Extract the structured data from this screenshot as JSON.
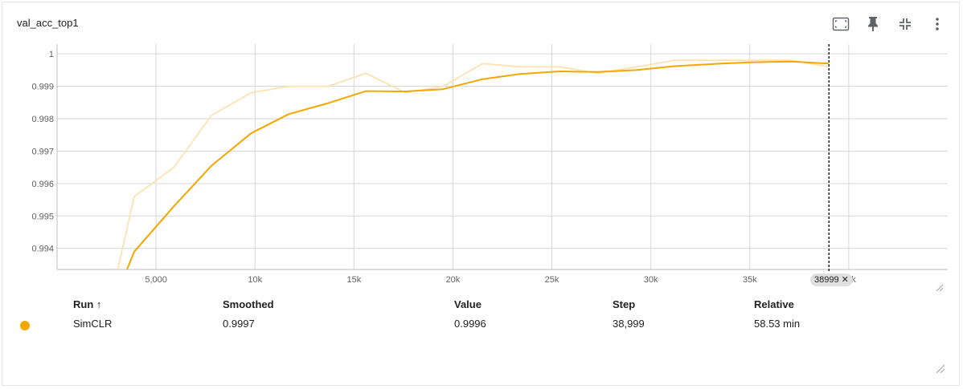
{
  "card": {
    "title": "val_acc_top1"
  },
  "toolbar": {
    "buttons": [
      {
        "name": "fit-domain-icon"
      },
      {
        "name": "pin-icon"
      },
      {
        "name": "collapse-icon"
      },
      {
        "name": "more-vert-icon"
      }
    ]
  },
  "chart_data": {
    "type": "line",
    "title": "",
    "xlabel": "",
    "ylabel": "",
    "xlim": [
      0,
      45000
    ],
    "ylim": [
      0.99335,
      1.0003
    ],
    "x_ticks": [
      {
        "value": 5000,
        "label": "5,000"
      },
      {
        "value": 10000,
        "label": "10k"
      },
      {
        "value": 15000,
        "label": "15k"
      },
      {
        "value": 20000,
        "label": "20k"
      },
      {
        "value": 25000,
        "label": "25k"
      },
      {
        "value": 30000,
        "label": "30k"
      },
      {
        "value": 35000,
        "label": "35k"
      },
      {
        "value": 40000,
        "label": "40k"
      }
    ],
    "y_ticks": [
      {
        "value": 0.994,
        "label": "0.994"
      },
      {
        "value": 0.995,
        "label": "0.995"
      },
      {
        "value": 0.996,
        "label": "0.996"
      },
      {
        "value": 0.997,
        "label": "0.997"
      },
      {
        "value": 0.998,
        "label": "0.998"
      },
      {
        "value": 0.999,
        "label": "0.999"
      },
      {
        "value": 1.0,
        "label": "1"
      }
    ],
    "grid": true,
    "series": [
      {
        "name": "SimCLR",
        "kind": "raw",
        "color": "#fde2b0",
        "x": [
          2900,
          3900,
          5900,
          7800,
          9800,
          11700,
          13700,
          15600,
          17600,
          19500,
          21500,
          23400,
          25400,
          27300,
          29300,
          31200,
          33200,
          35100,
          37100,
          38999
        ],
        "y": [
          0.9929,
          0.9956,
          0.9965,
          0.9981,
          0.9988,
          0.999,
          0.999,
          0.9994,
          0.9988,
          0.999,
          0.9997,
          0.9996,
          0.9996,
          0.9994,
          0.9996,
          0.9998,
          0.9998,
          0.9998,
          0.9998,
          0.9996
        ]
      },
      {
        "name": "SimCLR",
        "kind": "smoothed",
        "color": "#f5a700",
        "x": [
          3500,
          3900,
          5900,
          7800,
          9800,
          11700,
          13700,
          15600,
          17600,
          19500,
          21500,
          23400,
          25400,
          27300,
          29300,
          31200,
          33200,
          35100,
          37100,
          38999
        ],
        "y": [
          0.9933,
          0.9939,
          0.9953,
          0.99655,
          0.99755,
          0.99814,
          0.99848,
          0.99885,
          0.99884,
          0.99891,
          0.99922,
          0.99938,
          0.99946,
          0.99944,
          0.9995,
          0.99962,
          0.99969,
          0.99974,
          0.99976,
          0.9997
        ]
      }
    ],
    "cursor_step": 38999,
    "cursor_label": "38999"
  },
  "table": {
    "headers": {
      "run": "Run ↑",
      "smoothed": "Smoothed",
      "value": "Value",
      "step": "Step",
      "relative": "Relative"
    },
    "rows": [
      {
        "color": "#f5a700",
        "run": "SimCLR",
        "smoothed": "0.9997",
        "value": "0.9996",
        "step": "38,999",
        "relative": "58.53 min"
      }
    ]
  }
}
